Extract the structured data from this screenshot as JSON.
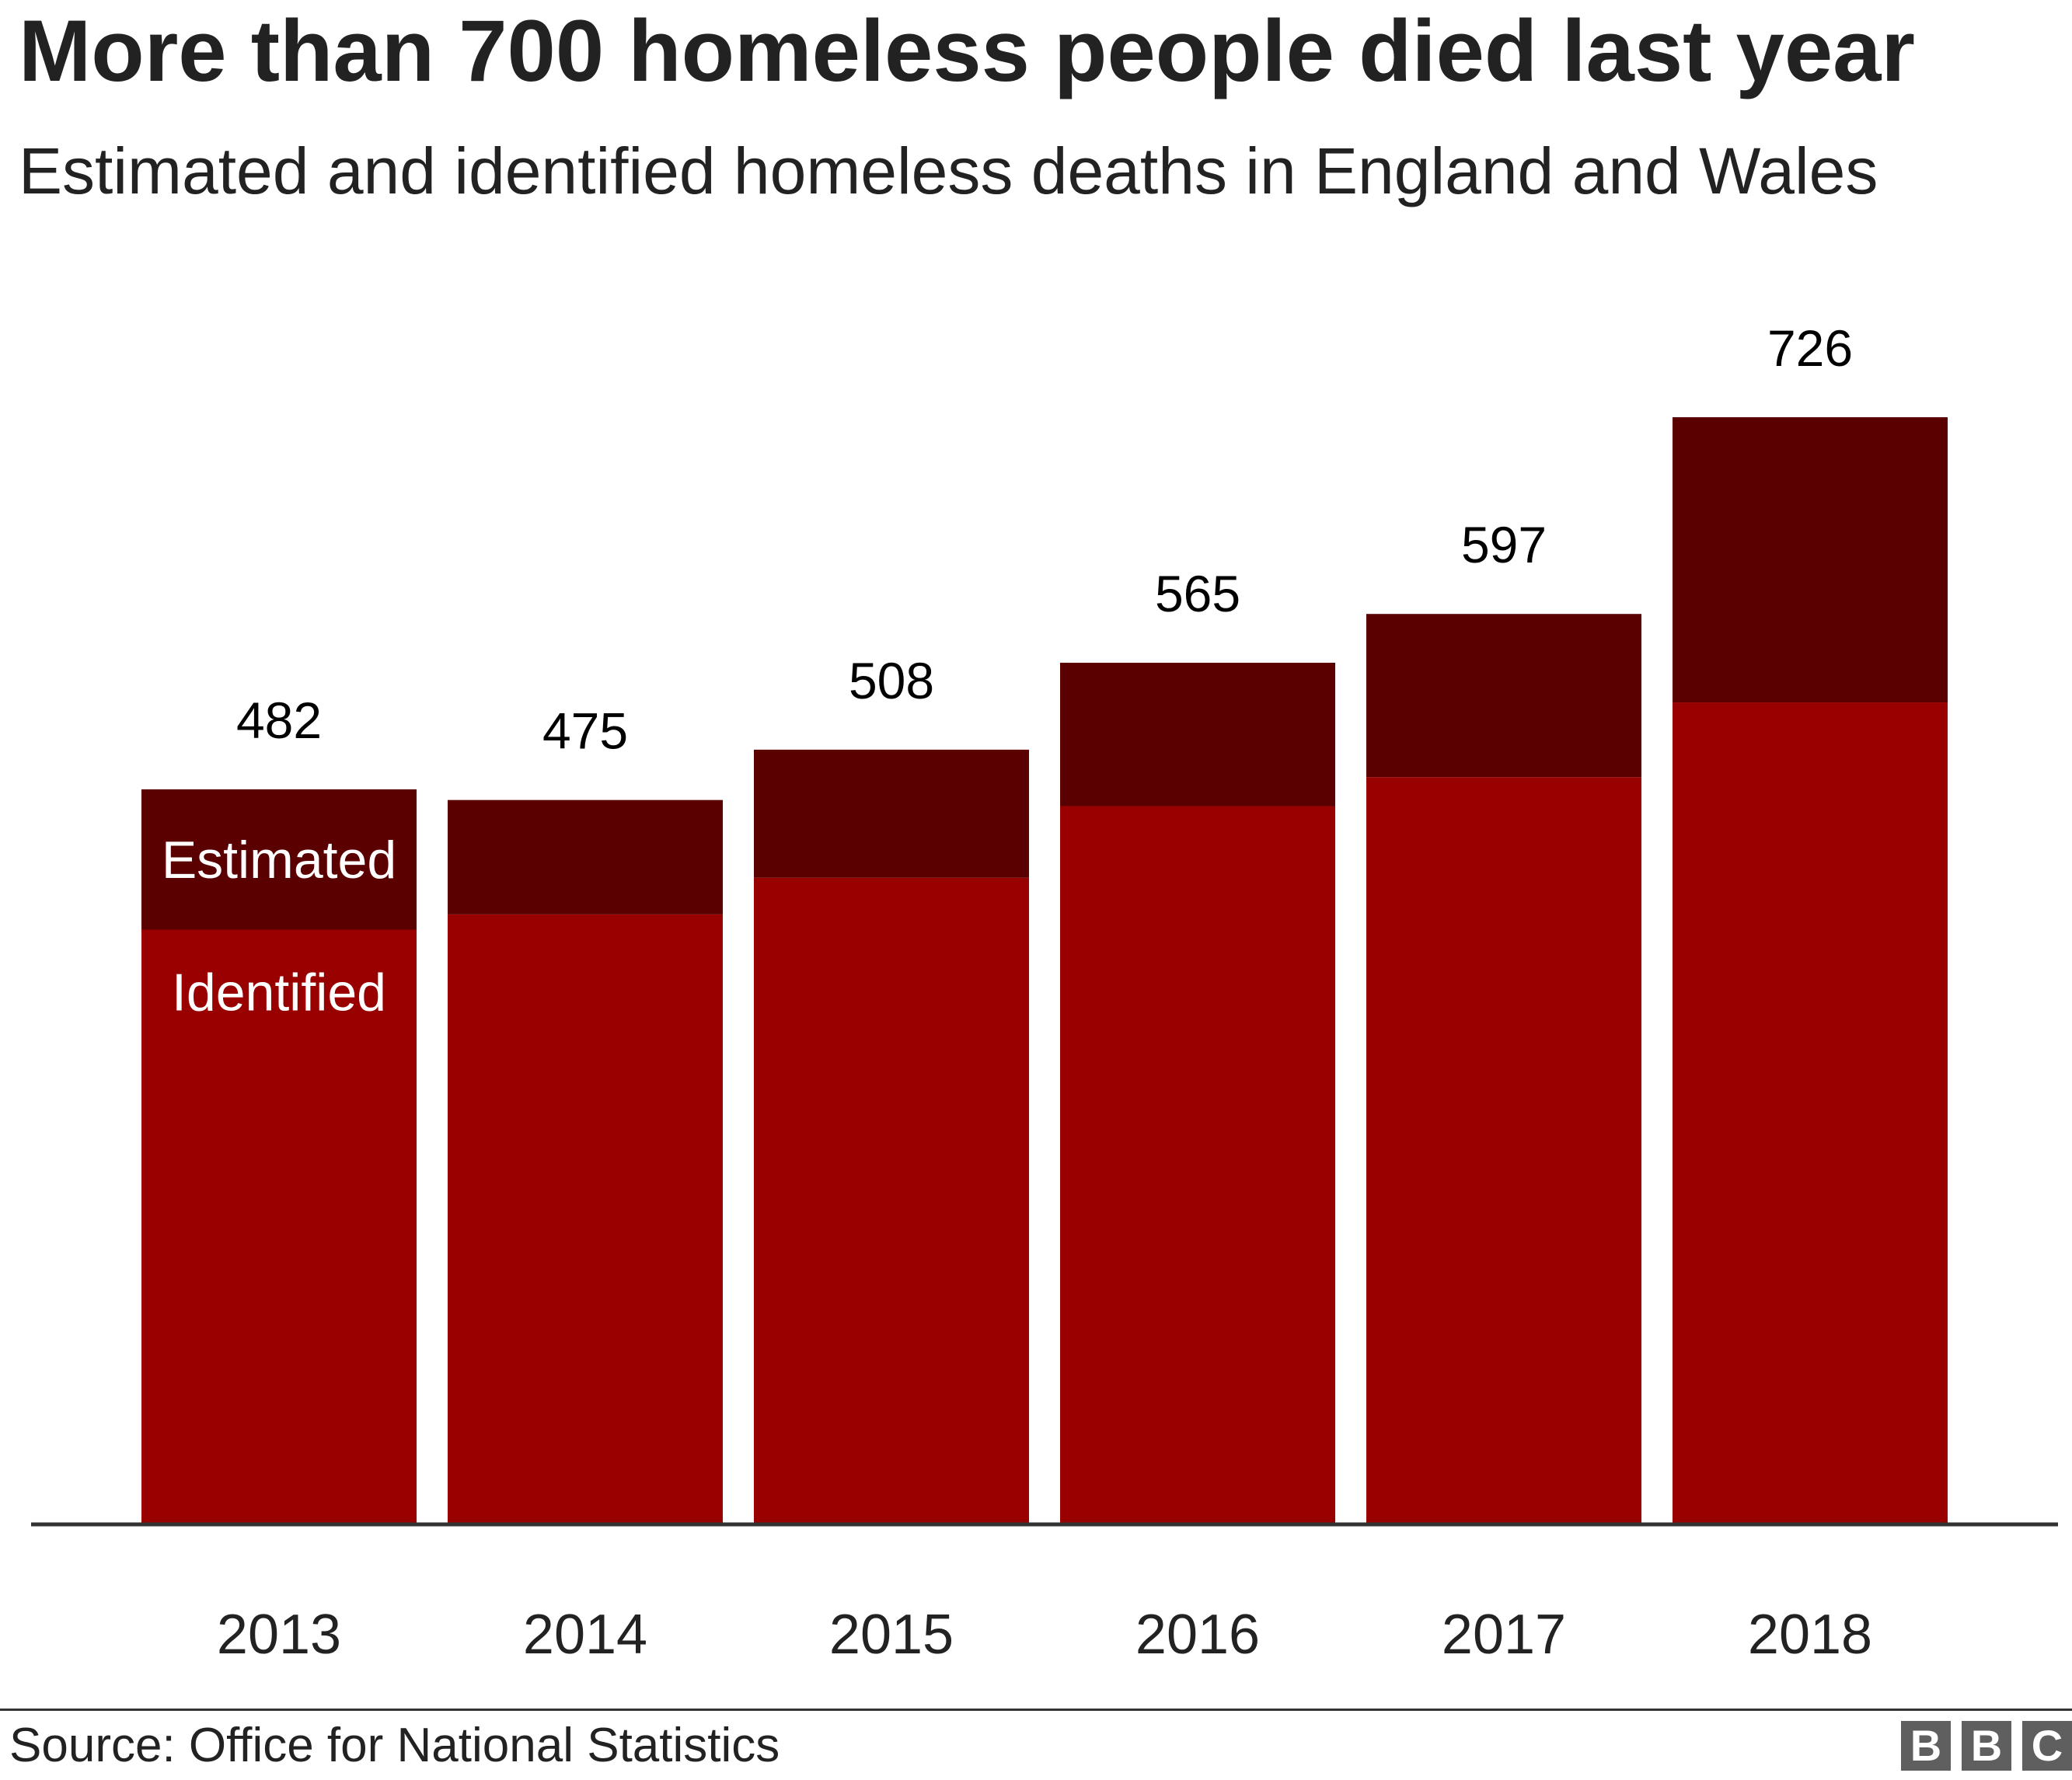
{
  "title": "More than 700 homeless people died last year",
  "subtitle": "Estimated and identified homeless deaths in England and Wales",
  "source": "Source: Office for National Statistics",
  "logo": {
    "text": "BBC",
    "letters": [
      "B",
      "B",
      "C"
    ]
  },
  "colors": {
    "identified": "#990000",
    "estimated": "#5a0000",
    "axis": "#333333",
    "label_text": "#ffffff",
    "value_text": "#000000",
    "tick_text": "#222222"
  },
  "chart_data": {
    "type": "bar",
    "stacked": true,
    "title": "More than 700 homeless people died last year",
    "subtitle": "Estimated and identified homeless deaths in England and Wales",
    "categories": [
      "2013",
      "2014",
      "2015",
      "2016",
      "2017",
      "2018"
    ],
    "series": [
      {
        "name": "Identified",
        "values": [
          390,
          400,
          424,
          471,
          490,
          539
        ]
      },
      {
        "name": "Estimated",
        "values": [
          92,
          75,
          84,
          94,
          107,
          187
        ]
      }
    ],
    "totals": [
      482,
      475,
      508,
      565,
      597,
      726
    ],
    "total_labels": [
      "482",
      "475",
      "508",
      "565",
      "597",
      "726"
    ],
    "ylim": [
      0,
      726
    ],
    "grid": false,
    "legend": "inline labels on first bar"
  }
}
